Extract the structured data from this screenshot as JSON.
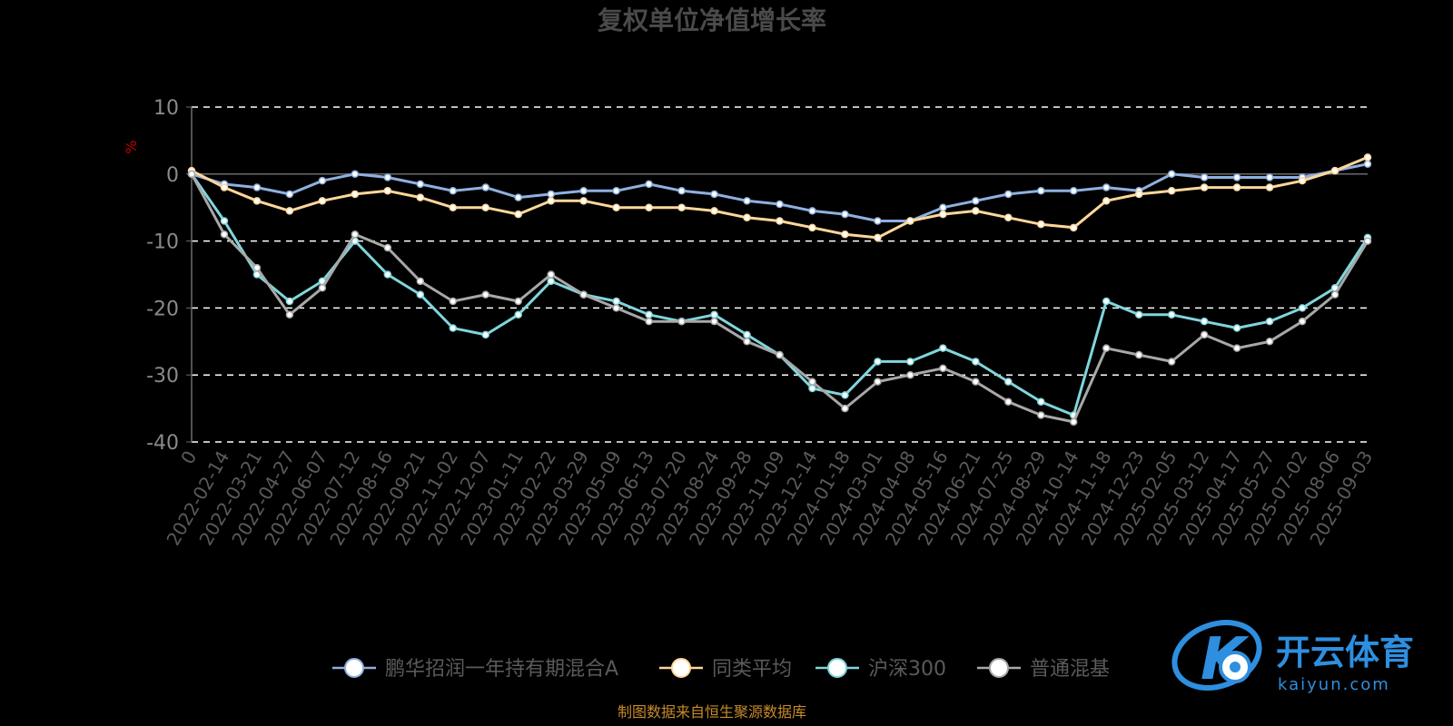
{
  "chart_data": {
    "type": "line",
    "title": "复权单位净值增长率",
    "ylabel": "%",
    "ylim": [
      -40,
      10
    ],
    "yticks": [
      "10",
      "0",
      "-10",
      "-20",
      "-30",
      "-40"
    ],
    "grid": true,
    "legend_position": "bottom",
    "x_labels": [
      "0",
      "2022-02-14",
      "2022-03-21",
      "2022-04-27",
      "2022-06-07",
      "2022-07-12",
      "2022-08-16",
      "2022-09-21",
      "2022-11-02",
      "2022-12-07",
      "2023-01-11",
      "2023-02-22",
      "2023-03-29",
      "2023-05-09",
      "2023-06-13",
      "2023-07-20",
      "2023-08-24",
      "2023-09-28",
      "2023-11-09",
      "2023-12-14",
      "2024-01-18",
      "2024-03-01",
      "2024-04-08",
      "2024-05-16",
      "2024-06-21",
      "2024-07-25",
      "2024-08-29",
      "2024-10-14",
      "2024-11-18",
      "2024-12-23",
      "2025-02-05",
      "2025-03-12",
      "2025-04-17",
      "2025-05-27",
      "2025-07-02",
      "2025-08-06",
      "2025-09-03"
    ],
    "series": [
      {
        "name": "鹏华招润一年持有期混合A",
        "color": "#8fb0e0",
        "values": [
          0,
          -1.5,
          -2,
          -3,
          -1,
          0,
          -0.5,
          -1.5,
          -2.5,
          -2,
          -3.5,
          -3,
          -2.5,
          -2.5,
          -1.5,
          -2.5,
          -3,
          -4,
          -4.5,
          -5.5,
          -6,
          -7,
          -7,
          -5,
          -4,
          -3,
          -2.5,
          -2.5,
          -2,
          -2.5,
          0,
          -0.5,
          -0.5,
          -0.5,
          -0.5,
          0.5,
          1.5
        ]
      },
      {
        "name": "同类平均",
        "color": "#ffd79a",
        "values": [
          0.5,
          -2,
          -4,
          -5.5,
          -4,
          -3,
          -2.5,
          -3.5,
          -5,
          -5,
          -6,
          -4,
          -4,
          -5,
          -5,
          -5,
          -5.5,
          -6.5,
          -7,
          -8,
          -9,
          -9.5,
          -7,
          -6,
          -5.5,
          -6.5,
          -7.5,
          -8,
          -4,
          -3,
          -2.5,
          -2,
          -2,
          -2,
          -1,
          0.5,
          2.5
        ]
      },
      {
        "name": "沪深300",
        "color": "#7fd6dc",
        "values": [
          0,
          -7,
          -15,
          -19,
          -16,
          -10,
          -15,
          -18,
          -23,
          -24,
          -21,
          -16,
          -18,
          -19,
          -21,
          -22,
          -21,
          -24,
          -27,
          -32,
          -33,
          -28,
          -28,
          -26,
          -28,
          -31,
          -34,
          -36,
          -19,
          -21,
          -21,
          -22,
          -23,
          -22,
          -20,
          -17,
          -9.5
        ]
      },
      {
        "name": "普通混基",
        "color": "#a8a8a8",
        "values": [
          0,
          -9,
          -14,
          -21,
          -17,
          -9,
          -11,
          -16,
          -19,
          -18,
          -19,
          -15,
          -18,
          -20,
          -22,
          -22,
          -22,
          -25,
          -27,
          -31,
          -35,
          -31,
          -30,
          -29,
          -31,
          -34,
          -36,
          -37,
          -26,
          -27,
          -28,
          -24,
          -26,
          -25,
          -22,
          -18,
          -10
        ]
      }
    ]
  },
  "footer": "制图数据来自恒生聚源数据库",
  "watermark": {
    "brand": "开云体育",
    "domain": "kaiyun.com",
    "logo": "K"
  }
}
